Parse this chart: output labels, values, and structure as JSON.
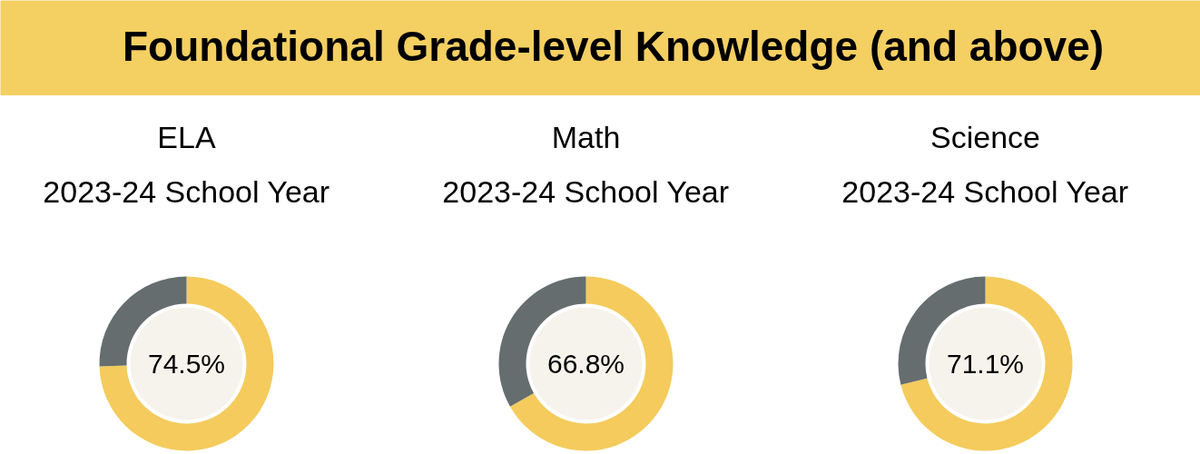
{
  "chart_data": [
    {
      "type": "other",
      "title": "Foundational Grade-level Knowledge (and above)"
    },
    {
      "type": "donut",
      "title": "ELA",
      "subtitle": "2023-24 School Year",
      "categories": [
        null,
        null
      ],
      "values": [
        74.5,
        25.5
      ],
      "colors": [
        "#f4cb5c",
        "#656d6f"
      ],
      "value_labels": [
        "74.5%",
        null
      ]
    },
    {
      "type": "donut",
      "title": "Math",
      "subtitle": "2023-24 School Year",
      "categories": [
        null,
        null
      ],
      "values": [
        66.8,
        33.2
      ],
      "colors": [
        "#f4cb5c",
        "#656d6f"
      ],
      "value_labels": [
        "66.8%",
        null
      ]
    },
    {
      "type": "donut",
      "title": "Science",
      "subtitle": "2023-24 School Year",
      "categories": [
        null,
        null
      ],
      "values": [
        71.1,
        28.9
      ],
      "colors": [
        "#f4cb5c",
        "#656d6f"
      ],
      "value_labels": [
        "71.1%",
        null
      ]
    }
  ]
}
